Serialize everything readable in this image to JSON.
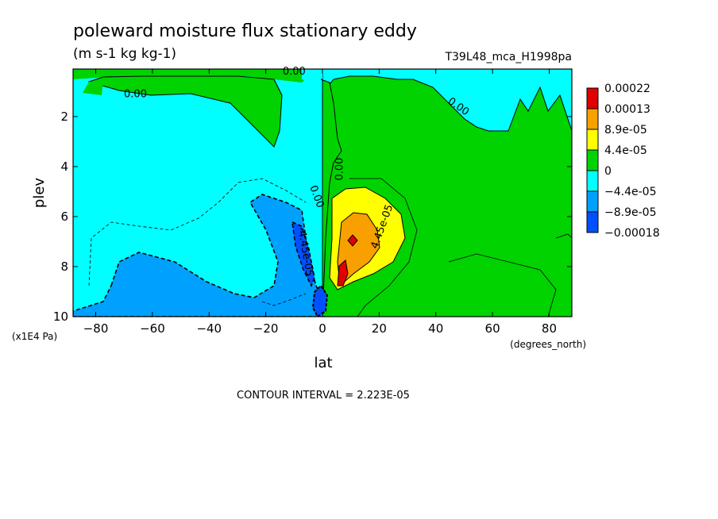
{
  "chart_data": {
    "type": "heatmap",
    "title": "poleward moisture flux stationary eddy",
    "subtitle": "(m s-1 kg kg-1)",
    "run_label": "T39L48_mca_H1998pa",
    "xlabel": "lat",
    "x_unit": "(degrees_north)",
    "ylabel": "plev",
    "y_unit": "(x1E4 Pa)",
    "xlim": [
      -88,
      88
    ],
    "ylim": [
      10,
      0.1
    ],
    "x_ticks": [
      -80,
      -60,
      -40,
      -20,
      0,
      20,
      40,
      60,
      80
    ],
    "x_tick_labels": [
      "−80",
      "−60",
      "−40",
      "−20",
      "0",
      "20",
      "40",
      "60",
      "80"
    ],
    "y_ticks": [
      2,
      4,
      6,
      8,
      10
    ],
    "y_tick_labels": [
      "2",
      "4",
      "6",
      "8",
      "10"
    ],
    "contour_interval_text": "CONTOUR INTERVAL = 2.223E-05",
    "contour_labels": [
      {
        "text": "0.00",
        "lat": -10,
        "plev": 0.2
      },
      {
        "text": "0.00",
        "lat": -66,
        "plev": 1.1
      },
      {
        "text": "0.00",
        "lat": 48,
        "plev": 1.6
      },
      {
        "text": "0.00",
        "lat": 6,
        "plev": 4.1
      },
      {
        "text": "0.00",
        "lat": -2,
        "plev": 5.2
      },
      {
        "text": "4.45e-05",
        "lat": 21,
        "plev": 6.4
      },
      {
        "text": "-4.45e-05",
        "lat": -6,
        "plev": 7.4
      }
    ],
    "legend": {
      "labels": [
        "0.00022",
        "0.00013",
        "8.9e-05",
        "4.4e-05",
        "0",
        "−4.4e-05",
        "−8.9e-05",
        "−0.00018"
      ],
      "colors": [
        "#e00000",
        "#f7a000",
        "#ffff00",
        "#00d300",
        "#00ffff",
        "#00a0ff",
        "#0050ff"
      ]
    },
    "regions": [
      {
        "level": "0 to 4.4e-05",
        "color": "#00d300",
        "lat_range": [
          0,
          88
        ],
        "plev_range": [
          0.1,
          10
        ],
        "note": "broad positive region north of equator"
      },
      {
        "level": "4.4e-05 to 8.9e-05",
        "color": "#ffff00",
        "lat_center": 12,
        "plev_center": 6.8
      },
      {
        "level": "8.9e-05 to 0.00013",
        "color": "#f7a000",
        "lat_center": 11,
        "plev_center": 7.2
      },
      {
        "level": "0.00013 to 0.00022",
        "color": "#e00000",
        "lat_center": 9,
        "plev_center": 8.2
      },
      {
        "level": "-4.4e-05 to 0",
        "color": "#00ffff",
        "lat_range": [
          -88,
          0
        ],
        "plev_range": [
          0.1,
          10
        ],
        "note": "broad negative region south of equator"
      },
      {
        "level": "-8.9e-05 to -4.4e-05",
        "color": "#00a0ff",
        "lat_range": [
          -72,
          -8
        ],
        "plev_center": 8.0
      },
      {
        "level": "-0.00018 to -8.9e-05",
        "color": "#0050ff",
        "lat_center": -6,
        "plev_center": 7.4
      }
    ]
  }
}
